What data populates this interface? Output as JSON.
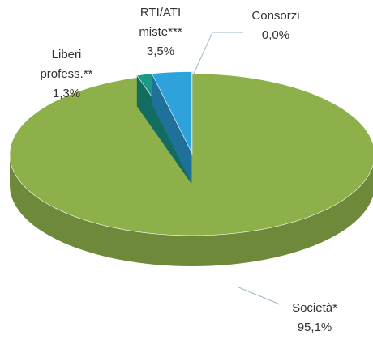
{
  "chart_data": {
    "type": "pie",
    "categories": [
      "Società*",
      "Liberi profess.**",
      "RTI/ATI miste***",
      "Consorzi"
    ],
    "values": [
      95.1,
      1.3,
      3.5,
      0.0
    ],
    "value_labels": [
      "95,1%",
      "1,3%",
      "3,5%",
      "0,0%"
    ],
    "colors": [
      "#8db04a",
      "#1b9a87",
      "#2ea2db",
      "#d9e4ef"
    ]
  }
}
